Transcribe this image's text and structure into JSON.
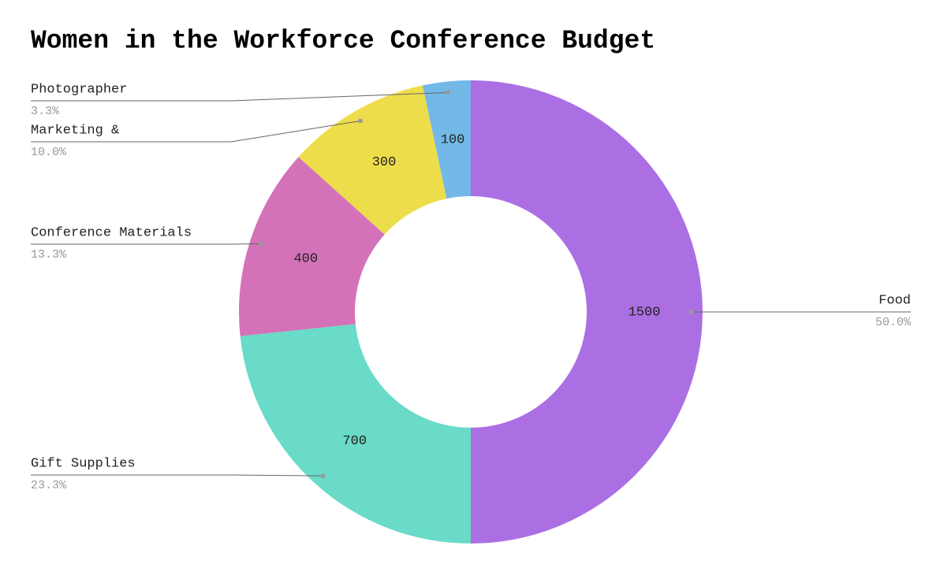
{
  "chart_data": {
    "type": "donut",
    "title": "Women in the Workforce Conference Budget",
    "categories": [
      "Food",
      "Gift Supplies",
      "Conference Materials",
      "Marketing &",
      "Photographer"
    ],
    "values": [
      1500,
      700,
      400,
      300,
      100
    ],
    "percent_labels": [
      "50.0%",
      "23.3%",
      "13.3%",
      "10.0%",
      "3.3%"
    ],
    "colors": [
      "#ab6fe3",
      "#69dbc8",
      "#d472b9",
      "#eedd4a",
      "#72b9e8"
    ]
  }
}
